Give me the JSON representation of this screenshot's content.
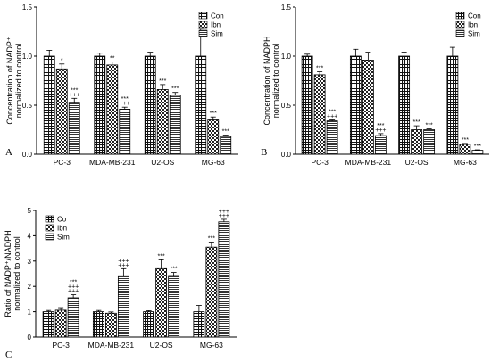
{
  "figure": {
    "panel_letters": [
      "A",
      "B",
      "C"
    ]
  },
  "chart_data": [
    {
      "panel": "A",
      "type": "bar",
      "ylabel": [
        "Concentration of NADP⁺",
        "normalized to control"
      ],
      "ylim": [
        0,
        1.5
      ],
      "yticks": [
        "0.0",
        "0.5",
        "1.0",
        "1.5"
      ],
      "categories": [
        "PC-3",
        "MDA-MB-231",
        "U2-OS",
        "MG-63"
      ],
      "legend": {
        "placement": "top-right"
      },
      "series": [
        {
          "name": "Con",
          "pattern": "grid",
          "values": [
            1.0,
            1.0,
            1.0,
            1.0
          ],
          "errors": [
            0.06,
            0.03,
            0.04,
            0.28
          ]
        },
        {
          "name": "Ibn",
          "pattern": "check",
          "values": [
            0.87,
            0.91,
            0.66,
            0.35
          ],
          "errors": [
            0.05,
            0.03,
            0.05,
            0.03
          ]
        },
        {
          "name": "Sim",
          "pattern": "hlines",
          "values": [
            0.53,
            0.46,
            0.6,
            0.18
          ],
          "errors": [
            0.04,
            0.02,
            0.03,
            0.015
          ]
        }
      ],
      "annotations": [
        [
          "",
          "*",
          "***\n+++"
        ],
        [
          "",
          "**",
          "***\n+++"
        ],
        [
          "",
          "***",
          "***"
        ],
        [
          "",
          "***",
          "***"
        ]
      ]
    },
    {
      "panel": "B",
      "type": "bar",
      "ylabel": [
        "Concentration of NADPH",
        "normalized to control"
      ],
      "ylim": [
        0,
        1.5
      ],
      "yticks": [
        "0.0",
        "0.5",
        "1.0",
        "1.5"
      ],
      "categories": [
        "PC-3",
        "MDA-MB-231",
        "U2-OS",
        "MG-63"
      ],
      "legend": {
        "placement": "top-right"
      },
      "series": [
        {
          "name": "Con",
          "pattern": "grid",
          "values": [
            1.0,
            1.0,
            1.0,
            1.0
          ],
          "errors": [
            0.02,
            0.07,
            0.04,
            0.09
          ]
        },
        {
          "name": "Ibn",
          "pattern": "check",
          "values": [
            0.81,
            0.96,
            0.25,
            0.1
          ],
          "errors": [
            0.03,
            0.08,
            0.04,
            0.01
          ]
        },
        {
          "name": "Sim",
          "pattern": "hlines",
          "values": [
            0.34,
            0.19,
            0.25,
            0.04
          ],
          "errors": [
            0.01,
            0.02,
            0.01,
            0.005
          ]
        }
      ],
      "annotations": [
        [
          "",
          "***",
          "***\n+++"
        ],
        [
          "",
          "",
          "***\n+++"
        ],
        [
          "",
          "***",
          "***"
        ],
        [
          "",
          "***",
          "***"
        ]
      ]
    },
    {
      "panel": "C",
      "type": "bar",
      "ylabel": [
        "Ratio of NADP⁺/NADPH",
        "normalized to control"
      ],
      "ylim": [
        0,
        5
      ],
      "yticks": [
        "0",
        "1",
        "2",
        "3",
        "4",
        "5"
      ],
      "categories": [
        "PC-3",
        "MDA-MB-231",
        "U2-OS",
        "MG-63"
      ],
      "legend": {
        "placement": "top-left"
      },
      "series": [
        {
          "name": "Co",
          "pattern": "grid",
          "values": [
            1.0,
            1.0,
            1.0,
            1.0
          ],
          "errors": [
            0.05,
            0.05,
            0.04,
            0.25
          ]
        },
        {
          "name": "Ibn",
          "pattern": "check",
          "values": [
            1.06,
            0.94,
            2.7,
            3.55
          ],
          "errors": [
            0.1,
            0.05,
            0.35,
            0.2
          ]
        },
        {
          "name": "Sim",
          "pattern": "hlines",
          "values": [
            1.55,
            2.42,
            2.43,
            4.55
          ],
          "errors": [
            0.12,
            0.28,
            0.12,
            0.1
          ]
        }
      ],
      "annotations": [
        [
          "",
          "",
          "***\n+++\n+++"
        ],
        [
          "",
          "",
          "+++\n+++"
        ],
        [
          "",
          "***",
          "***"
        ],
        [
          "",
          "***",
          "+++\n+++"
        ]
      ]
    }
  ]
}
